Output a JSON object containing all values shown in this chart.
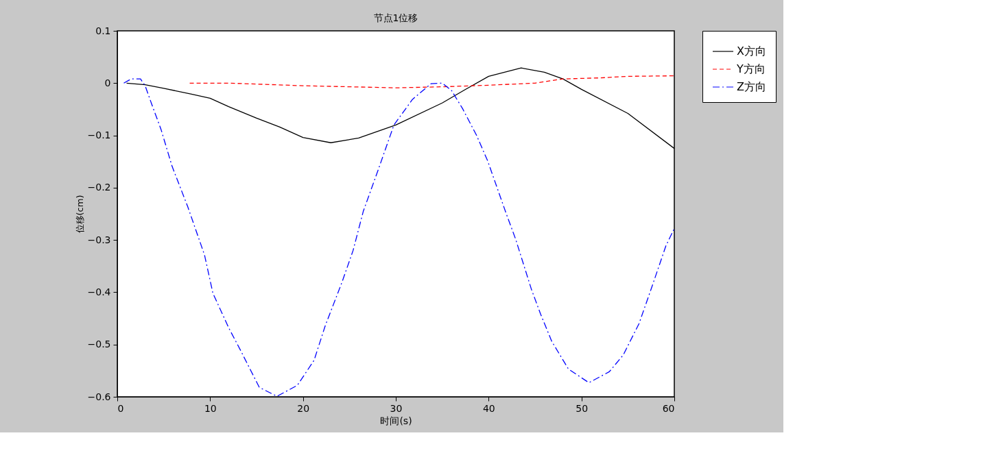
{
  "chart_data": {
    "type": "line",
    "title": "节点1位移",
    "xlabel": "时间(s)",
    "ylabel": "位移(cm)",
    "xlim": [
      0,
      60
    ],
    "xticks": [
      0,
      10,
      20,
      30,
      40,
      50,
      60
    ],
    "ylim": [
      -0.6,
      0.1
    ],
    "yticks": [
      0.1,
      0,
      -0.1,
      -0.2,
      -0.3,
      -0.4,
      -0.5,
      -0.6
    ],
    "grid": false,
    "legend": "right",
    "marker": "none",
    "series": [
      {
        "name": "X方向",
        "color": "#000000",
        "line_style": "solid",
        "x": [
          1,
          3,
          5,
          8,
          10,
          12,
          15,
          17.5,
          20,
          23,
          26,
          30,
          35,
          37.5,
          40,
          43.5,
          46,
          48,
          50,
          55,
          60
        ],
        "values": [
          0,
          -0.003,
          -0.01,
          -0.021,
          -0.029,
          -0.045,
          -0.067,
          -0.084,
          -0.104,
          -0.114,
          -0.105,
          -0.08,
          -0.038,
          -0.012,
          0.013,
          0.029,
          0.021,
          0.008,
          -0.012,
          -0.058,
          -0.125
        ]
      },
      {
        "name": "Y方向",
        "color": "#ff0000",
        "line_style": "dashed",
        "x": [
          7.8,
          12,
          20,
          30,
          35,
          40,
          45,
          48,
          52,
          55,
          60
        ],
        "values": [
          0,
          0,
          -0.005,
          -0.009,
          -0.007,
          -0.004,
          0,
          0.008,
          0.01,
          0.013,
          0.014
        ]
      },
      {
        "name": "Z方向",
        "color": "#0000ff",
        "line_style": "dashdot",
        "x": [
          0.7,
          1.5,
          2.5,
          3,
          3.7,
          4.7,
          5.9,
          7.6,
          9.4,
          10.3,
          12,
          13.3,
          15.3,
          17.2,
          19.4,
          21.2,
          22.4,
          24.2,
          25.4,
          26.5,
          28.1,
          29.8,
          31.8,
          33.8,
          35,
          36,
          37.2,
          38.7,
          39.9,
          41.9,
          42.9,
          44.6,
          45.6,
          46.8,
          48.6,
          50.8,
          53,
          54.5,
          56.2,
          57.6,
          59.1,
          60
        ],
        "values": [
          0,
          0.008,
          0.008,
          -0.005,
          -0.04,
          -0.088,
          -0.159,
          -0.237,
          -0.329,
          -0.402,
          -0.468,
          -0.512,
          -0.582,
          -0.599,
          -0.578,
          -0.53,
          -0.464,
          -0.381,
          -0.32,
          -0.245,
          -0.166,
          -0.08,
          -0.031,
          -0.001,
          0,
          -0.014,
          -0.049,
          -0.1,
          -0.149,
          -0.25,
          -0.298,
          -0.394,
          -0.442,
          -0.494,
          -0.547,
          -0.573,
          -0.552,
          -0.52,
          -0.46,
          -0.389,
          -0.311,
          -0.278
        ]
      }
    ]
  }
}
